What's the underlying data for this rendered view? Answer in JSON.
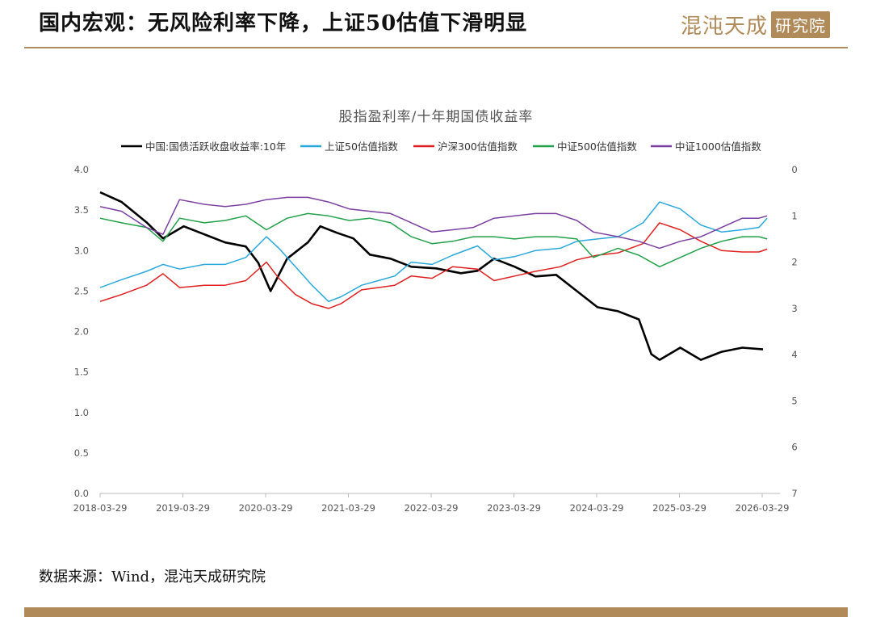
{
  "header": {
    "title": "国内宏观：无风险利率下降，上证50估值下滑明显",
    "logo_main": "混沌天成",
    "logo_box": "研究院"
  },
  "footer": {
    "source": "数据来源：Wind，混沌天成研究院"
  },
  "colors": {
    "gold": "#b08a58"
  },
  "chart_data": {
    "type": "line",
    "title": "股指盈利率/十年期国债收益率",
    "x_ticks": [
      "2018-03-29",
      "2019-03-29",
      "2020-03-29",
      "2021-03-29",
      "2022-03-29",
      "2023-03-29",
      "2024-03-29",
      "2025-03-29",
      "2026-03-29"
    ],
    "y_left": {
      "min": 0,
      "max": 4,
      "ticks": [
        "0.0",
        "0.5",
        "1.0",
        "1.5",
        "2.0",
        "2.5",
        "3.0",
        "3.5",
        "4.0"
      ]
    },
    "y_right": {
      "min": 0,
      "max": 7,
      "inverted": true,
      "ticks": [
        "0",
        "1",
        "2",
        "3",
        "4",
        "5",
        "6",
        "7"
      ]
    },
    "legend_position": "top",
    "series": [
      {
        "name": "中国:国债活跃收盘收益率:10年",
        "color": "#000000",
        "axis": "left",
        "x": [
          2018.24,
          2018.5,
          2018.8,
          2019.0,
          2019.25,
          2019.5,
          2019.75,
          2020.0,
          2020.15,
          2020.3,
          2020.5,
          2020.75,
          2020.9,
          2021.1,
          2021.3,
          2021.5,
          2021.75,
          2022.0,
          2022.3,
          2022.6,
          2022.8,
          2023.0,
          2023.25,
          2023.5,
          2023.75,
          2024.0,
          2024.25,
          2024.5,
          2024.75,
          2024.9,
          2025.0,
          2025.25,
          2025.5,
          2025.75,
          2026.0,
          2026.25
        ],
        "y": [
          3.72,
          3.6,
          3.35,
          3.15,
          3.3,
          3.2,
          3.1,
          3.05,
          2.85,
          2.5,
          2.9,
          3.1,
          3.3,
          3.22,
          3.15,
          2.95,
          2.9,
          2.8,
          2.78,
          2.72,
          2.75,
          2.9,
          2.8,
          2.68,
          2.7,
          2.5,
          2.3,
          2.25,
          2.15,
          1.72,
          1.65,
          1.8,
          1.65,
          1.75,
          1.8,
          1.78
        ]
      },
      {
        "name": "上证50估值指数",
        "color": "#2aa8dc",
        "axis": "right",
        "x": [
          2018.24,
          2018.5,
          2018.8,
          2019.0,
          2019.2,
          2019.5,
          2019.75,
          2020.0,
          2020.25,
          2020.4,
          2020.6,
          2020.8,
          2021.0,
          2021.15,
          2021.4,
          2021.6,
          2021.8,
          2022.0,
          2022.25,
          2022.5,
          2022.8,
          2023.0,
          2023.25,
          2023.5,
          2023.8,
          2024.0,
          2024.25,
          2024.5,
          2024.8,
          2025.0,
          2025.25,
          2025.5,
          2025.75,
          2026.0,
          2026.2,
          2026.3
        ],
        "y": [
          2.55,
          2.38,
          2.2,
          2.05,
          2.15,
          2.05,
          2.05,
          1.9,
          1.45,
          1.7,
          2.1,
          2.5,
          2.85,
          2.75,
          2.5,
          2.4,
          2.3,
          2.0,
          2.05,
          1.85,
          1.65,
          1.95,
          1.88,
          1.75,
          1.7,
          1.55,
          1.5,
          1.45,
          1.15,
          0.7,
          0.85,
          1.2,
          1.35,
          1.3,
          1.25,
          1.05
        ]
      },
      {
        "name": "沪深300估值指数",
        "color": "#e02020",
        "axis": "right",
        "x": [
          2018.24,
          2018.5,
          2018.8,
          2019.0,
          2019.2,
          2019.5,
          2019.75,
          2020.0,
          2020.25,
          2020.4,
          2020.6,
          2020.8,
          2021.0,
          2021.15,
          2021.4,
          2021.6,
          2021.8,
          2022.0,
          2022.25,
          2022.5,
          2022.8,
          2023.0,
          2023.25,
          2023.5,
          2023.8,
          2024.0,
          2024.25,
          2024.5,
          2024.8,
          2025.0,
          2025.25,
          2025.5,
          2025.75,
          2026.0,
          2026.2,
          2026.3
        ],
        "y": [
          2.85,
          2.7,
          2.5,
          2.25,
          2.55,
          2.5,
          2.5,
          2.4,
          2.0,
          2.35,
          2.7,
          2.9,
          3.0,
          2.9,
          2.6,
          2.55,
          2.5,
          2.3,
          2.35,
          2.1,
          2.15,
          2.4,
          2.3,
          2.2,
          2.1,
          1.95,
          1.85,
          1.8,
          1.6,
          1.15,
          1.3,
          1.55,
          1.75,
          1.78,
          1.78,
          1.72
        ]
      },
      {
        "name": "中证500估值指数",
        "color": "#22a04a",
        "axis": "right",
        "x": [
          2018.24,
          2018.5,
          2018.8,
          2019.0,
          2019.2,
          2019.5,
          2019.75,
          2020.0,
          2020.25,
          2020.5,
          2020.75,
          2021.0,
          2021.25,
          2021.5,
          2021.75,
          2022.0,
          2022.25,
          2022.5,
          2022.75,
          2023.0,
          2023.25,
          2023.5,
          2023.75,
          2024.0,
          2024.2,
          2024.5,
          2024.75,
          2025.0,
          2025.25,
          2025.5,
          2025.75,
          2026.0,
          2026.2,
          2026.3
        ],
        "y": [
          1.05,
          1.15,
          1.25,
          1.55,
          1.05,
          1.15,
          1.1,
          1.0,
          1.3,
          1.05,
          0.95,
          1.0,
          1.1,
          1.05,
          1.15,
          1.45,
          1.6,
          1.55,
          1.45,
          1.45,
          1.5,
          1.45,
          1.45,
          1.5,
          1.9,
          1.7,
          1.85,
          2.1,
          1.9,
          1.7,
          1.55,
          1.45,
          1.45,
          1.5
        ]
      },
      {
        "name": "中证1000估值指数",
        "color": "#7a3fa0",
        "axis": "right",
        "x": [
          2018.24,
          2018.5,
          2018.8,
          2019.0,
          2019.2,
          2019.5,
          2019.75,
          2020.0,
          2020.25,
          2020.5,
          2020.75,
          2021.0,
          2021.25,
          2021.5,
          2021.75,
          2022.0,
          2022.25,
          2022.5,
          2022.75,
          2023.0,
          2023.25,
          2023.5,
          2023.75,
          2024.0,
          2024.2,
          2024.5,
          2024.75,
          2025.0,
          2025.25,
          2025.5,
          2025.75,
          2026.0,
          2026.2,
          2026.3
        ],
        "y": [
          0.8,
          0.9,
          1.25,
          1.4,
          0.65,
          0.75,
          0.8,
          0.75,
          0.65,
          0.6,
          0.6,
          0.7,
          0.85,
          0.9,
          0.95,
          1.15,
          1.35,
          1.3,
          1.25,
          1.05,
          1.0,
          0.95,
          0.95,
          1.1,
          1.35,
          1.45,
          1.55,
          1.7,
          1.55,
          1.45,
          1.25,
          1.05,
          1.05,
          1.0
        ]
      }
    ]
  }
}
